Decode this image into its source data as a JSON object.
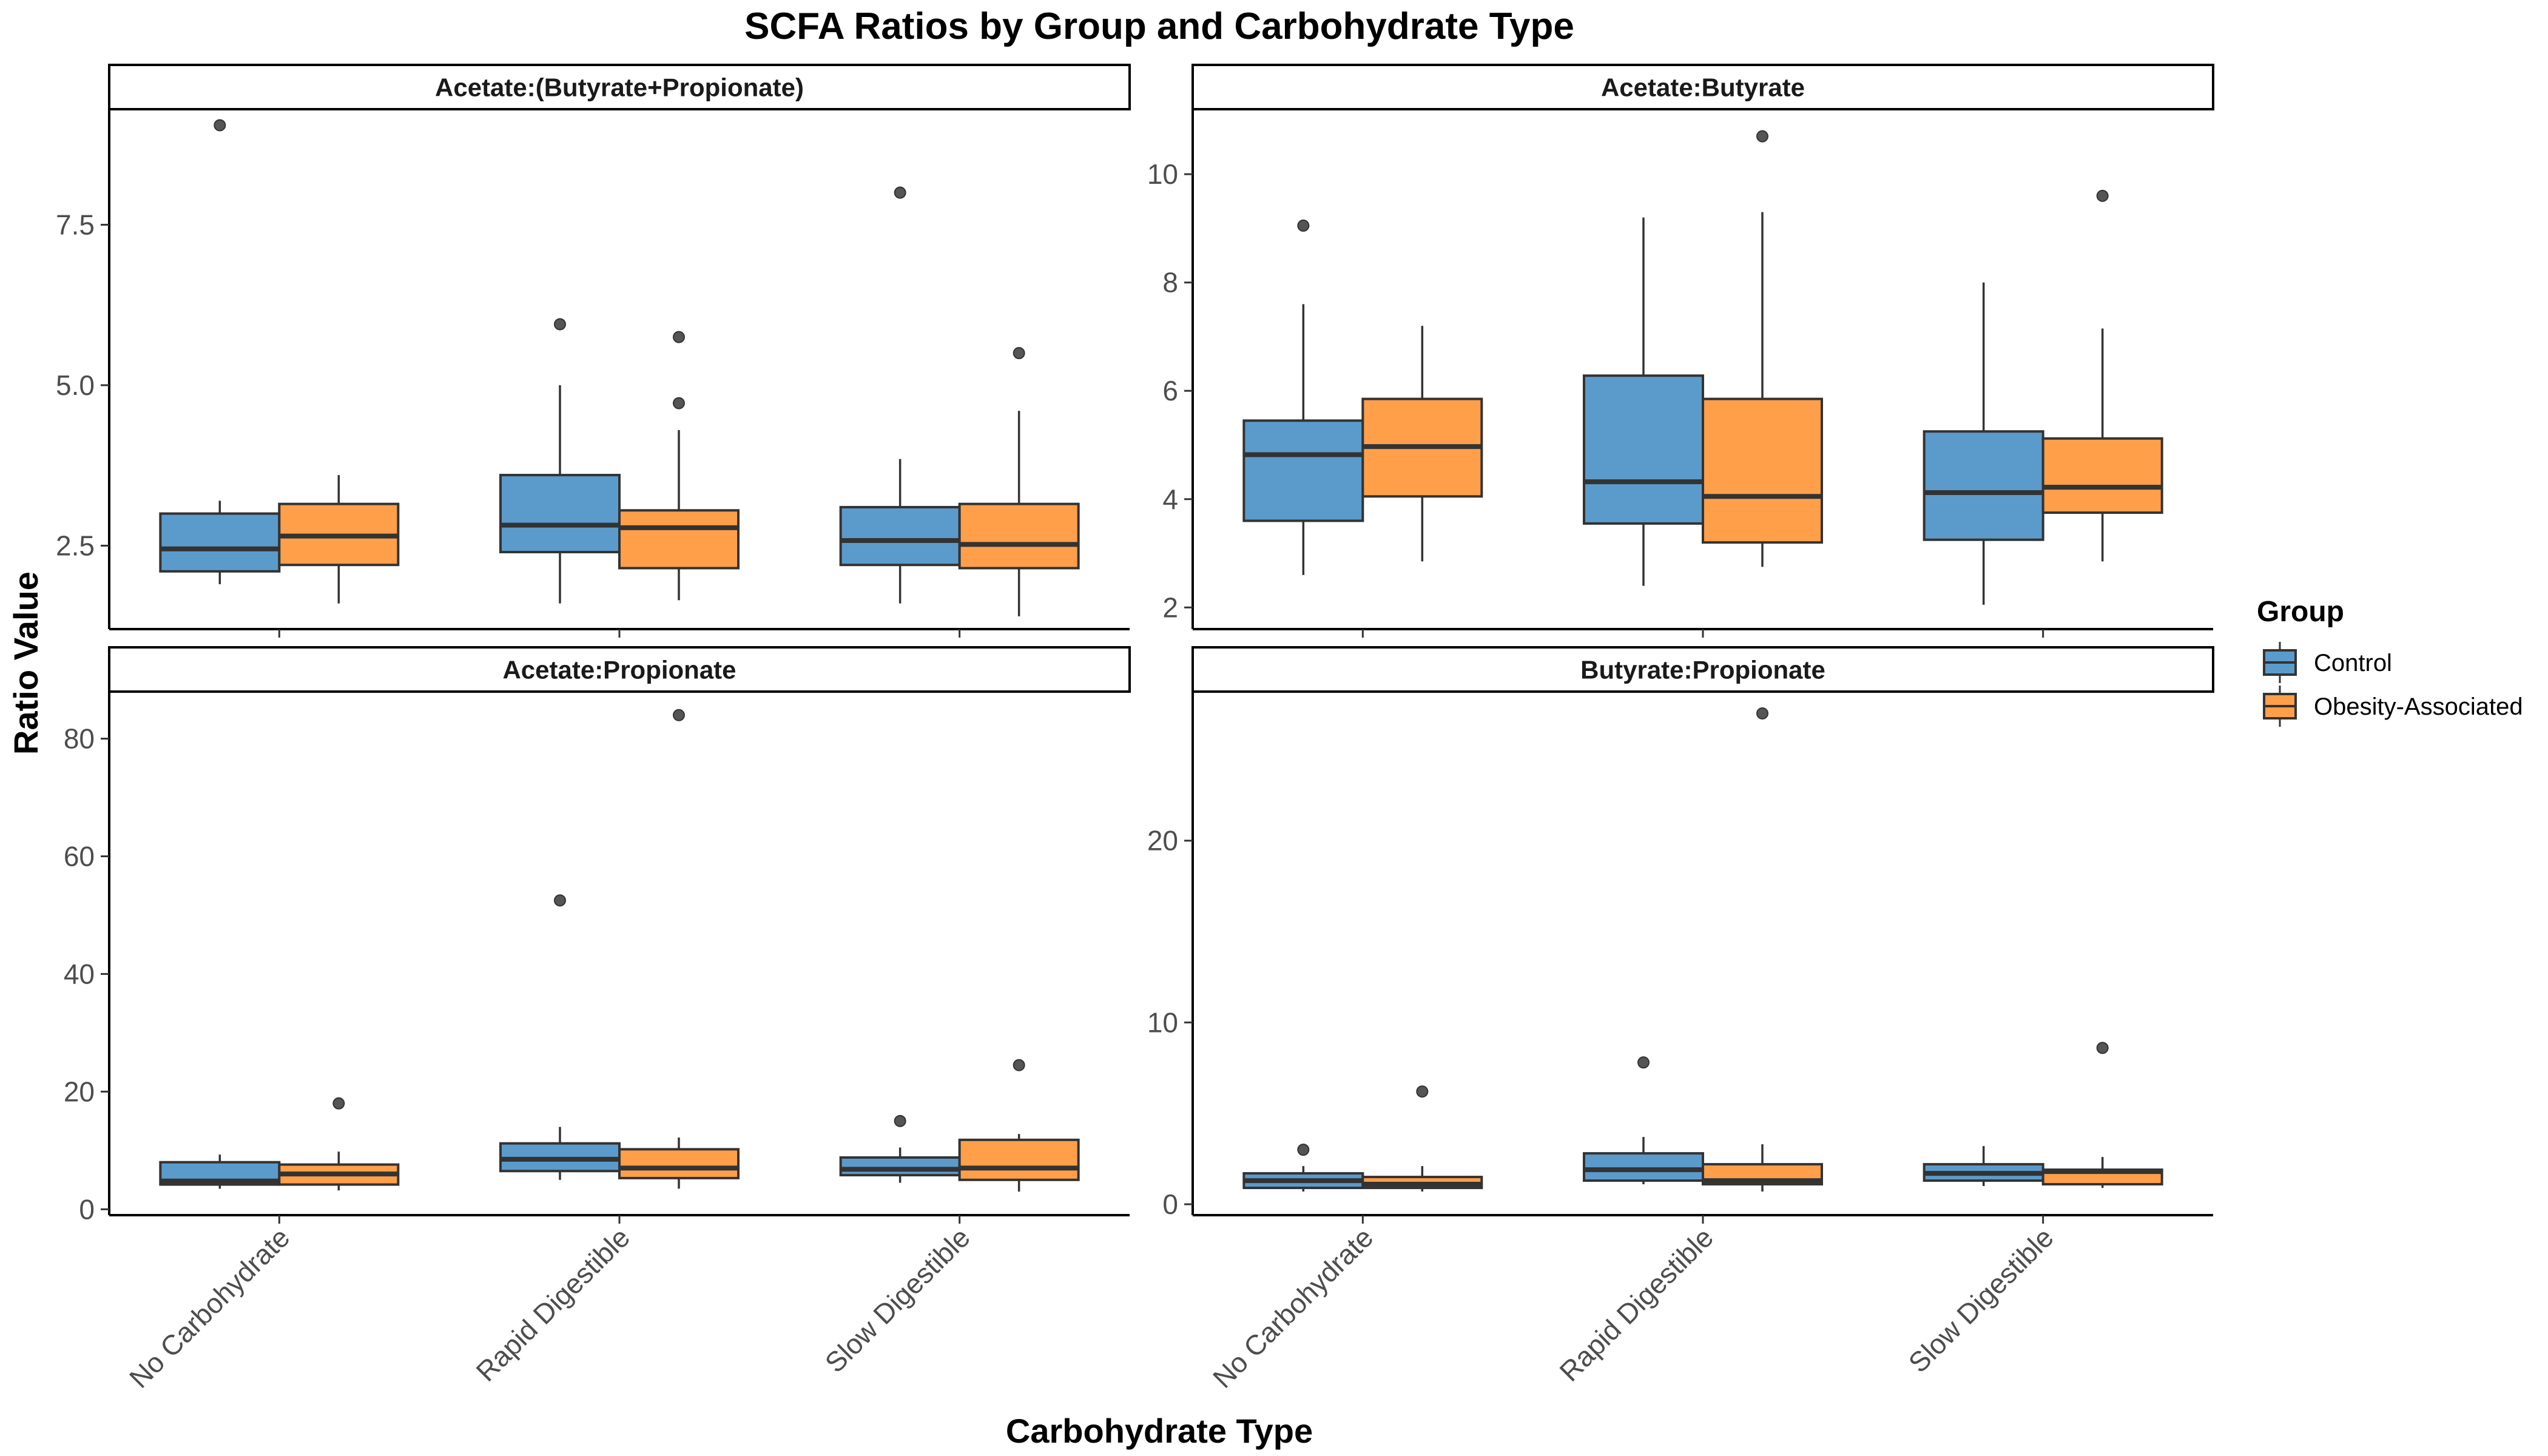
{
  "chart_data": {
    "type": "boxplot",
    "title": "SCFA Ratios by Group and Carbohydrate Type",
    "xlabel": "Carbohydrate Type",
    "ylabel": "Ratio Value",
    "categories": [
      "No Carbohydrate",
      "Rapid Digestible",
      "Slow Digestible"
    ],
    "legend": {
      "title": "Group",
      "position": "right",
      "entries": [
        {
          "name": "Control",
          "color": "#5b9bcb"
        },
        {
          "name": "Obesity-Associated",
          "color": "#ff9f4a"
        }
      ]
    },
    "facet_layout": "2x2",
    "grid": false,
    "panels": [
      {
        "name": "Acetate:(Butyrate+Propionate)",
        "ylim": [
          1.2,
          9.3
        ],
        "yticks": [
          2.5,
          5.0,
          7.5
        ],
        "ytick_labels": [
          "2.5",
          "5.0",
          "7.5"
        ],
        "boxes": {
          "Control": [
            {
              "whisker_low": 1.9,
              "q1": 2.1,
              "median": 2.45,
              "q3": 3.0,
              "whisker_high": 3.2,
              "outliers": [
                9.05
              ]
            },
            {
              "whisker_low": 1.6,
              "q1": 2.4,
              "median": 2.82,
              "q3": 3.6,
              "whisker_high": 5.0,
              "outliers": [
                5.95
              ]
            },
            {
              "whisker_low": 1.6,
              "q1": 2.2,
              "median": 2.58,
              "q3": 3.1,
              "whisker_high": 3.85,
              "outliers": [
                8.0
              ]
            }
          ],
          "Obesity-Associated": [
            {
              "whisker_low": 1.6,
              "q1": 2.2,
              "median": 2.65,
              "q3": 3.15,
              "whisker_high": 3.6,
              "outliers": []
            },
            {
              "whisker_low": 1.65,
              "q1": 2.15,
              "median": 2.78,
              "q3": 3.05,
              "whisker_high": 4.3,
              "outliers": [
                4.72,
                5.75
              ]
            },
            {
              "whisker_low": 1.4,
              "q1": 2.15,
              "median": 2.52,
              "q3": 3.15,
              "whisker_high": 4.6,
              "outliers": [
                5.5
              ]
            }
          ]
        }
      },
      {
        "name": "Acetate:Butyrate",
        "ylim": [
          1.6,
          11.2
        ],
        "yticks": [
          2,
          4,
          6,
          8,
          10
        ],
        "ytick_labels": [
          "2",
          "4",
          "6",
          "8",
          "10"
        ],
        "boxes": {
          "Control": [
            {
              "whisker_low": 2.6,
              "q1": 3.6,
              "median": 4.82,
              "q3": 5.45,
              "whisker_high": 7.6,
              "outliers": [
                9.05
              ]
            },
            {
              "whisker_low": 2.4,
              "q1": 3.55,
              "median": 4.32,
              "q3": 6.28,
              "whisker_high": 9.2,
              "outliers": []
            },
            {
              "whisker_low": 2.05,
              "q1": 3.25,
              "median": 4.12,
              "q3": 5.25,
              "whisker_high": 8.0,
              "outliers": []
            }
          ],
          "Obesity-Associated": [
            {
              "whisker_low": 2.85,
              "q1": 4.05,
              "median": 4.97,
              "q3": 5.85,
              "whisker_high": 7.2,
              "outliers": []
            },
            {
              "whisker_low": 2.75,
              "q1": 3.2,
              "median": 4.05,
              "q3": 5.85,
              "whisker_high": 9.3,
              "outliers": [
                10.7
              ]
            },
            {
              "whisker_low": 2.85,
              "q1": 3.75,
              "median": 4.22,
              "q3": 5.12,
              "whisker_high": 7.15,
              "outliers": [
                9.6
              ]
            }
          ]
        }
      },
      {
        "name": "Acetate:Propionate",
        "ylim": [
          -1,
          88
        ],
        "yticks": [
          0,
          20,
          40,
          60,
          80
        ],
        "ytick_labels": [
          "0",
          "20",
          "40",
          "60",
          "80"
        ],
        "boxes": {
          "Control": [
            {
              "whisker_low": 3.5,
              "q1": 4.2,
              "median": 4.8,
              "q3": 8.0,
              "whisker_high": 9.3,
              "outliers": []
            },
            {
              "whisker_low": 5.0,
              "q1": 6.5,
              "median": 8.5,
              "q3": 11.2,
              "whisker_high": 14.0,
              "outliers": [
                52.5
              ]
            },
            {
              "whisker_low": 4.5,
              "q1": 5.8,
              "median": 6.8,
              "q3": 8.8,
              "whisker_high": 10.5,
              "outliers": [
                15.0
              ]
            }
          ],
          "Obesity-Associated": [
            {
              "whisker_low": 3.2,
              "q1": 4.2,
              "median": 6.0,
              "q3": 7.6,
              "whisker_high": 9.8,
              "outliers": [
                18.0
              ]
            },
            {
              "whisker_low": 3.5,
              "q1": 5.3,
              "median": 7.0,
              "q3": 10.2,
              "whisker_high": 12.2,
              "outliers": [
                84.0
              ]
            },
            {
              "whisker_low": 3.0,
              "q1": 5.0,
              "median": 7.0,
              "q3": 11.8,
              "whisker_high": 12.8,
              "outliers": [
                24.5
              ]
            }
          ]
        }
      },
      {
        "name": "Butyrate:Propionate",
        "ylim": [
          -0.6,
          28.2
        ],
        "yticks": [
          0,
          10,
          20
        ],
        "ytick_labels": [
          "0",
          "10",
          "20"
        ],
        "boxes": {
          "Control": [
            {
              "whisker_low": 0.7,
              "q1": 0.9,
              "median": 1.3,
              "q3": 1.7,
              "whisker_high": 2.1,
              "outliers": [
                3.0
              ]
            },
            {
              "whisker_low": 1.1,
              "q1": 1.3,
              "median": 1.9,
              "q3": 2.8,
              "whisker_high": 3.7,
              "outliers": [
                7.8
              ]
            },
            {
              "whisker_low": 1.0,
              "q1": 1.3,
              "median": 1.7,
              "q3": 2.2,
              "whisker_high": 3.2,
              "outliers": []
            }
          ],
          "Obesity-Associated": [
            {
              "whisker_low": 0.7,
              "q1": 0.9,
              "median": 1.1,
              "q3": 1.5,
              "whisker_high": 2.1,
              "outliers": [
                6.2
              ]
            },
            {
              "whisker_low": 0.7,
              "q1": 1.1,
              "median": 1.3,
              "q3": 2.2,
              "whisker_high": 3.3,
              "outliers": [
                27.0
              ]
            },
            {
              "whisker_low": 0.9,
              "q1": 1.1,
              "median": 1.8,
              "q3": 1.9,
              "whisker_high": 2.6,
              "outliers": [
                8.6
              ]
            }
          ]
        }
      }
    ]
  }
}
